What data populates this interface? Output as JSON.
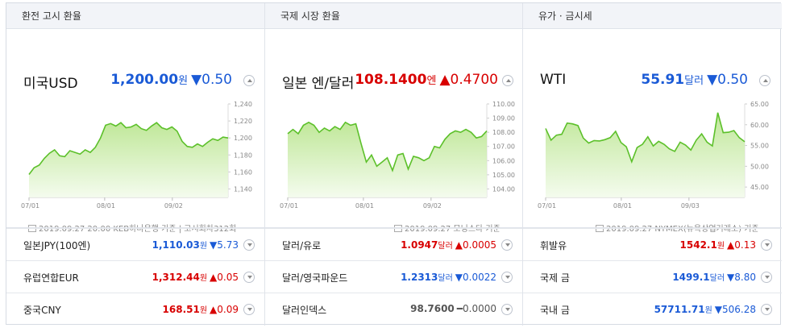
{
  "sections": [
    {
      "header": "환전 고시 환율",
      "name": "미국USD",
      "price": "1,200.00",
      "unit": "원",
      "change": "▼0.50",
      "dir": "down",
      "axis": [
        "1,240",
        "1,220",
        "1,200",
        "1,180",
        "1,160",
        "1,140"
      ],
      "ymin": 1130,
      "ymax": 1240,
      "xlabels": [
        "07/01",
        "08/01",
        "09/02"
      ],
      "source": "2019.09.27 20:00 KEB하나은행 기준 | 고시회차312회",
      "rows": [
        {
          "label": "일본JPY(100엔)",
          "value": "1,110.03",
          "unit": "원",
          "change": "▼5.73",
          "dir": "down"
        },
        {
          "label": "유럽연합EUR",
          "value": "1,312.44",
          "unit": "원",
          "change": "▲0.05",
          "dir": "up"
        },
        {
          "label": "중국CNY",
          "value": "168.51",
          "unit": "원",
          "change": "▲0.09",
          "dir": "up"
        }
      ]
    },
    {
      "header": "국제 시장 환율",
      "name": "일본 엔/달러",
      "price": "108.1400",
      "unit": "엔",
      "change": "▲0.4700",
      "dir": "up",
      "axis": [
        "110.00",
        "109.00",
        "108.00",
        "107.00",
        "106.00",
        "105.00",
        "104.00"
      ],
      "ymin": 103.4,
      "ymax": 110,
      "xlabels": [
        "07/01",
        "08/01",
        "09/02"
      ],
      "source": "2019.09.27 모닝스타 기준",
      "rows": [
        {
          "label": "달러/유로",
          "value": "1.0947",
          "unit": "달러",
          "change": "▲0.0005",
          "dir": "up"
        },
        {
          "label": "달러/영국파운드",
          "value": "1.2313",
          "unit": "달러",
          "change": "▼0.0022",
          "dir": "down"
        },
        {
          "label": "달러인덱스",
          "value": "98.7600",
          "unit": "",
          "change": "━0.0000",
          "dir": "flat"
        }
      ]
    },
    {
      "header": "유가 · 금시세",
      "name": "WTI",
      "price": "55.91",
      "unit": "달러",
      "change": "▼0.50",
      "dir": "down",
      "axis": [
        "65.00",
        "60.00",
        "55.00",
        "50.00",
        "45.00"
      ],
      "ymin": 42.5,
      "ymax": 65,
      "xlabels": [
        "07/01",
        "08/01",
        "09/03"
      ],
      "source": "2019.09.27 NYMEX(뉴욕상업거래소) 기준",
      "rows": [
        {
          "label": "휘발유",
          "value": "1542.1",
          "unit": "원",
          "change": "▲0.13",
          "dir": "up"
        },
        {
          "label": "국제 금",
          "value": "1499.1",
          "unit": "달러",
          "change": "▼8.80",
          "dir": "down"
        },
        {
          "label": "국내 금",
          "value": "57711.71",
          "unit": "원",
          "change": "▼506.28",
          "dir": "down"
        }
      ]
    }
  ],
  "chart_data": [
    {
      "type": "area",
      "title": "미국USD",
      "ylim": [
        1130,
        1240
      ],
      "x": [
        "07/01",
        "07/03",
        "07/05",
        "07/08",
        "07/10",
        "07/12",
        "07/15",
        "07/17",
        "07/19",
        "07/22",
        "07/24",
        "07/26",
        "07/29",
        "07/31",
        "08/01",
        "08/03",
        "08/06",
        "08/08",
        "08/10",
        "08/13",
        "08/15",
        "08/17",
        "08/20",
        "08/22",
        "08/24",
        "08/27",
        "08/29",
        "08/31",
        "09/02",
        "09/04",
        "09/06",
        "09/09",
        "09/11",
        "09/13",
        "09/16",
        "09/18",
        "09/20",
        "09/23",
        "09/25",
        "09/27"
      ],
      "values": [
        1157,
        1165,
        1168,
        1176,
        1182,
        1186,
        1179,
        1178,
        1185,
        1183,
        1181,
        1186,
        1183,
        1189,
        1200,
        1215,
        1217,
        1214,
        1218,
        1212,
        1213,
        1216,
        1211,
        1209,
        1214,
        1218,
        1212,
        1210,
        1213,
        1208,
        1196,
        1190,
        1189,
        1193,
        1190,
        1195,
        1199,
        1197,
        1201,
        1200
      ]
    },
    {
      "type": "area",
      "title": "일본 엔/달러",
      "ylim": [
        103.4,
        110
      ],
      "x": [
        "07/01",
        "07/03",
        "07/05",
        "07/08",
        "07/10",
        "07/12",
        "07/15",
        "07/17",
        "07/19",
        "07/22",
        "07/24",
        "07/26",
        "07/29",
        "07/31",
        "08/02",
        "08/05",
        "08/07",
        "08/09",
        "08/12",
        "08/14",
        "08/16",
        "08/19",
        "08/21",
        "08/23",
        "08/26",
        "08/28",
        "08/30",
        "09/02",
        "09/04",
        "09/06",
        "09/09",
        "09/11",
        "09/13",
        "09/16",
        "09/18",
        "09/20",
        "09/23",
        "09/25",
        "09/27"
      ],
      "values": [
        107.9,
        108.2,
        107.9,
        108.5,
        108.7,
        108.5,
        108.0,
        108.3,
        108.1,
        108.4,
        108.2,
        108.7,
        108.5,
        108.6,
        107.2,
        105.9,
        106.4,
        105.6,
        105.9,
        106.2,
        105.3,
        106.4,
        106.5,
        105.4,
        106.3,
        106.2,
        106.0,
        106.2,
        107.0,
        106.9,
        107.5,
        107.9,
        108.1,
        108.0,
        108.2,
        108.0,
        107.6,
        107.7,
        108.1
      ]
    },
    {
      "type": "area",
      "title": "WTI",
      "ylim": [
        42.5,
        65
      ],
      "x": [
        "07/01",
        "07/03",
        "07/05",
        "07/08",
        "07/10",
        "07/12",
        "07/15",
        "07/17",
        "07/19",
        "07/22",
        "07/24",
        "07/26",
        "07/29",
        "07/31",
        "08/02",
        "08/05",
        "08/07",
        "08/09",
        "08/12",
        "08/14",
        "08/16",
        "08/19",
        "08/21",
        "08/23",
        "08/26",
        "08/28",
        "08/30",
        "09/03",
        "09/05",
        "09/09",
        "09/11",
        "09/13",
        "09/16",
        "09/18",
        "09/20",
        "09/23",
        "09/25",
        "09/27"
      ],
      "values": [
        59.1,
        56.3,
        57.5,
        57.7,
        60.4,
        60.2,
        59.8,
        56.8,
        55.6,
        56.2,
        56.1,
        56.4,
        56.9,
        58.4,
        55.7,
        54.7,
        51.1,
        54.5,
        55.3,
        57.1,
        54.9,
        56.0,
        55.3,
        54.2,
        53.6,
        55.8,
        55.1,
        53.9,
        56.3,
        57.8,
        55.8,
        54.9,
        62.9,
        58.1,
        58.2,
        58.6,
        56.9,
        55.9
      ]
    }
  ]
}
